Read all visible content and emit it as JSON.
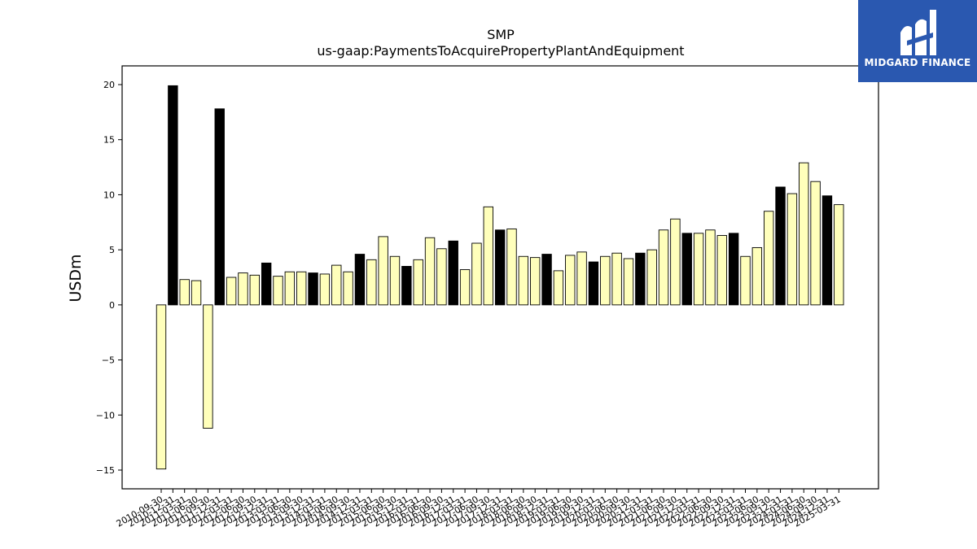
{
  "logo": {
    "text": "MIDGARD FINANCE"
  },
  "chart_data": {
    "type": "bar",
    "title": "SMP",
    "subtitle": "us-gaap:PaymentsToAcquirePropertyPlantAndEquipment",
    "ylabel": "USDm",
    "ylim": [
      -16.7,
      21.7
    ],
    "yticks": [
      -15,
      -10,
      -5,
      0,
      5,
      10,
      15,
      20
    ],
    "ytick_labels": [
      "−15",
      "−10",
      "−5",
      "0",
      "5",
      "10",
      "15",
      "20"
    ],
    "grid": false,
    "colors": {
      "regular": "#ffffbb",
      "highlight": "#000000",
      "edge": "#000000"
    },
    "categories": [
      "2010-09-30",
      "2010-12-31",
      "2011-03-31",
      "2011-06-30",
      "2011-09-30",
      "2011-12-31",
      "2012-03-31",
      "2012-06-30",
      "2012-09-30",
      "2012-12-31",
      "2013-03-31",
      "2013-06-30",
      "2013-09-30",
      "2013-12-31",
      "2014-03-31",
      "2014-06-30",
      "2014-09-30",
      "2014-12-31",
      "2015-03-31",
      "2015-06-30",
      "2015-09-30",
      "2015-12-31",
      "2016-03-31",
      "2016-06-30",
      "2016-09-30",
      "2016-12-31",
      "2017-03-31",
      "2017-06-30",
      "2017-09-30",
      "2017-12-31",
      "2018-03-31",
      "2018-06-30",
      "2018-09-30",
      "2018-12-31",
      "2019-03-31",
      "2019-06-30",
      "2019-09-30",
      "2019-12-31",
      "2020-03-31",
      "2020-06-30",
      "2020-09-30",
      "2020-12-31",
      "2021-03-31",
      "2021-06-30",
      "2021-09-30",
      "2021-12-31",
      "2022-03-31",
      "2022-06-30",
      "2022-09-30",
      "2022-12-31",
      "2023-03-31",
      "2023-06-30",
      "2023-09-30",
      "2023-12-31",
      "2024-03-31",
      "2024-06-30",
      "2024-09-30",
      "2024-12-31",
      "2025-03-31"
    ],
    "values": [
      -14.9,
      19.9,
      2.3,
      2.2,
      -11.2,
      17.8,
      2.5,
      2.9,
      2.7,
      3.8,
      2.6,
      3.0,
      3.0,
      2.9,
      2.8,
      3.6,
      3.0,
      4.6,
      4.1,
      6.2,
      4.4,
      3.5,
      4.1,
      6.1,
      5.1,
      5.8,
      3.2,
      5.6,
      8.9,
      6.8,
      6.9,
      4.4,
      4.3,
      4.6,
      3.1,
      4.5,
      4.8,
      3.9,
      4.4,
      4.7,
      4.2,
      4.7,
      5.0,
      6.8,
      7.8,
      6.5,
      6.5,
      6.8,
      6.3,
      6.5,
      4.4,
      5.2,
      8.5,
      10.7,
      10.1,
      12.9,
      11.2,
      9.9,
      9.1
    ],
    "highlighted": [
      false,
      true,
      false,
      false,
      false,
      true,
      false,
      false,
      false,
      true,
      false,
      false,
      false,
      true,
      false,
      false,
      false,
      true,
      false,
      false,
      false,
      true,
      false,
      false,
      false,
      true,
      false,
      false,
      false,
      true,
      false,
      false,
      false,
      true,
      false,
      false,
      false,
      true,
      false,
      false,
      false,
      true,
      false,
      false,
      false,
      true,
      false,
      false,
      false,
      true,
      false,
      false,
      false,
      true,
      false,
      false,
      false,
      true,
      false
    ]
  }
}
